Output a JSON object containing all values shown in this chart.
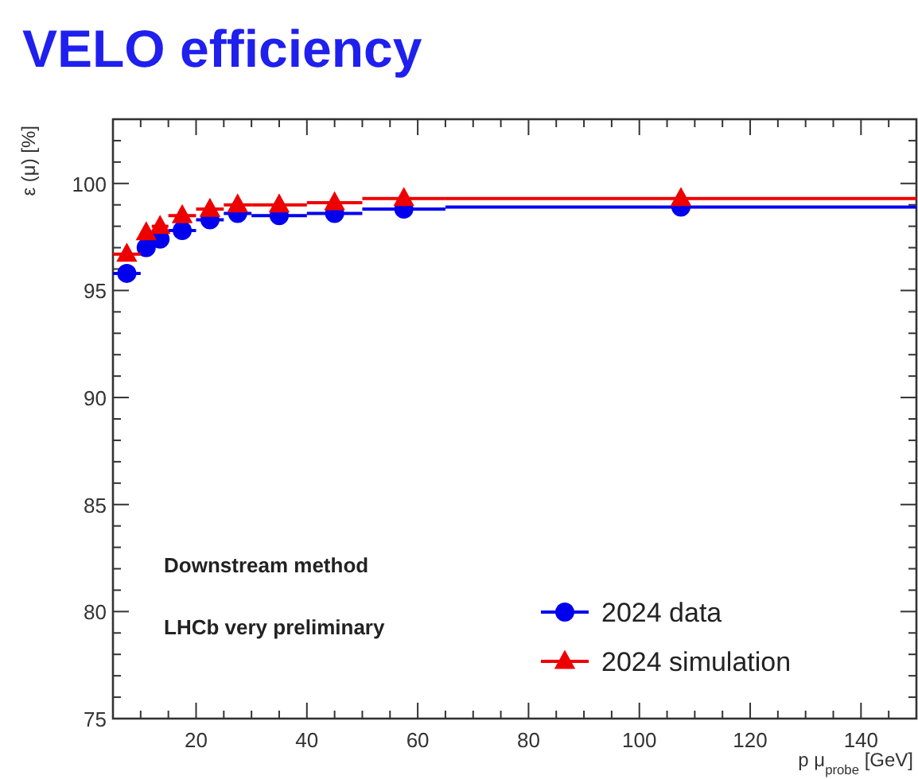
{
  "chart_data": {
    "type": "scatter",
    "title": "VELO efficiency",
    "xlabel": "p μ$_{probe}$ [GeV]",
    "ylabel": "ε (μ) [%]",
    "x": [
      7.5,
      11,
      13.5,
      17.5,
      22.5,
      27.5,
      35,
      45,
      57.5,
      107.5
    ],
    "series": [
      {
        "name": "2024 data",
        "color": "#0000ee",
        "marker": "circle",
        "values": [
          95.8,
          97.0,
          97.4,
          97.8,
          98.3,
          98.6,
          98.5,
          98.6,
          98.8,
          98.9
        ],
        "xerrors": [
          2.5,
          1,
          1.5,
          2.5,
          2.5,
          2.5,
          5,
          5,
          7.5,
          42.5
        ]
      },
      {
        "name": "2024 simulation",
        "color": "#ee0000",
        "marker": "triangle",
        "values": [
          96.7,
          97.7,
          98.0,
          98.5,
          98.8,
          99.0,
          99.0,
          99.1,
          99.3,
          99.3
        ],
        "xerrors": [
          2.5,
          1,
          1.5,
          2.5,
          2.5,
          2.5,
          5,
          5,
          7.5,
          42.5
        ]
      }
    ],
    "xlim": [
      5,
      150
    ],
    "ylim": [
      75,
      103
    ],
    "xticks": [
      {
        "value": 10,
        "label": null
      },
      {
        "value": 15,
        "label": null
      },
      20,
      {
        "value": 25,
        "label": null
      },
      {
        "value": 30,
        "label": null
      },
      {
        "value": 35,
        "label": null
      },
      40,
      {
        "value": 45,
        "label": null
      },
      {
        "value": 50,
        "label": null
      },
      {
        "value": 55,
        "label": null
      },
      60,
      {
        "value": 65,
        "label": null
      },
      {
        "value": 70,
        "label": null
      },
      {
        "value": 75,
        "label": null
      },
      80,
      {
        "value": 85,
        "label": null
      },
      {
        "value": 90,
        "label": null
      },
      {
        "value": 95,
        "label": null
      },
      100,
      {
        "value": 105,
        "label": null
      },
      {
        "value": 110,
        "label": null
      },
      {
        "value": 115,
        "label": null
      },
      120,
      {
        "value": 125,
        "label": null
      },
      {
        "value": 130,
        "label": null
      },
      {
        "value": 135,
        "label": null
      },
      140,
      {
        "value": 145,
        "label": null
      }
    ],
    "yticks": [
      75,
      {
        "value": 76,
        "label": null
      },
      {
        "value": 77,
        "label": null
      },
      {
        "value": 78,
        "label": null
      },
      {
        "value": 79,
        "label": null
      },
      80,
      {
        "value": 81,
        "label": null
      },
      {
        "value": 82,
        "label": null
      },
      {
        "value": 83,
        "label": null
      },
      {
        "value": 84,
        "label": null
      },
      85,
      {
        "value": 86,
        "label": null
      },
      {
        "value": 87,
        "label": null
      },
      {
        "value": 88,
        "label": null
      },
      {
        "value": 89,
        "label": null
      },
      90,
      {
        "value": 91,
        "label": null
      },
      {
        "value": 92,
        "label": null
      },
      {
        "value": 93,
        "label": null
      },
      {
        "value": 94,
        "label": null
      },
      95,
      {
        "value": 96,
        "label": null
      },
      {
        "value": 97,
        "label": null
      },
      {
        "value": 98,
        "label": null
      },
      {
        "value": 99,
        "label": null
      },
      100,
      {
        "value": 101,
        "label": null
      },
      {
        "value": 102,
        "label": null
      },
      {
        "value": 103,
        "label": null
      }
    ],
    "grid": false,
    "legend": "bottom right",
    "annotations": [
      "Downstream method",
      "LHCb very preliminary"
    ]
  }
}
